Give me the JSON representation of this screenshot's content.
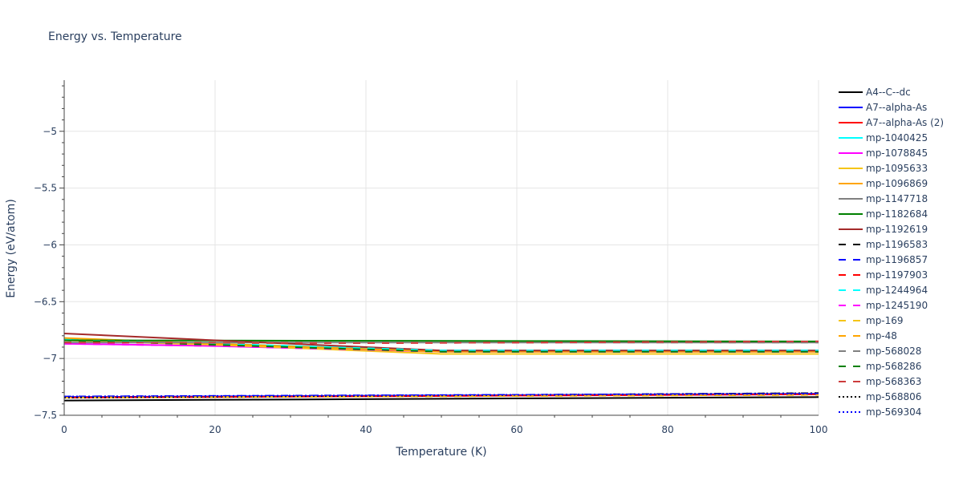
{
  "chart_data": {
    "type": "line",
    "title": "Energy vs. Temperature",
    "xlabel": "Temperature (K)",
    "ylabel": "Energy (eV/atom)",
    "xlim": [
      0,
      100
    ],
    "ylim": [
      -7.5,
      -4.55
    ],
    "x_ticks": [
      0,
      20,
      40,
      60,
      80,
      100
    ],
    "y_ticks": [
      -5,
      -5.5,
      -6,
      -6.5,
      -7,
      -7.5
    ],
    "x_tick_labels": [
      "0",
      "20",
      "40",
      "60",
      "80",
      "100"
    ],
    "y_tick_labels": [
      "−5",
      "−5.5",
      "−6",
      "−6.5",
      "−7",
      "−7.5"
    ],
    "grid": true,
    "legend_position": "right",
    "series": [
      {
        "name": "A4--C--dc",
        "color": "#000000",
        "dash": "solid",
        "x": [
          0,
          100
        ],
        "y": [
          -7.37,
          -7.34
        ]
      },
      {
        "name": "A7--alpha-As",
        "color": "#0000ff",
        "dash": "solid",
        "x": [
          0,
          100
        ],
        "y": [
          -7.34,
          -7.31
        ]
      },
      {
        "name": "A7--alpha-As (2)",
        "color": "#ff0000",
        "dash": "solid",
        "x": [
          0,
          100
        ],
        "y": [
          -7.345,
          -7.315
        ]
      },
      {
        "name": "mp-1040425",
        "color": "#00ffff",
        "dash": "solid",
        "x": [
          0,
          20,
          50,
          100
        ],
        "y": [
          -6.83,
          -6.87,
          -6.93,
          -6.93
        ]
      },
      {
        "name": "mp-1078845",
        "color": "#ff00ff",
        "dash": "solid",
        "x": [
          0,
          20,
          50,
          100
        ],
        "y": [
          -6.87,
          -6.89,
          -6.94,
          -6.94
        ]
      },
      {
        "name": "mp-1095633",
        "color": "#f5c518",
        "dash": "solid",
        "x": [
          0,
          20,
          50,
          100
        ],
        "y": [
          -6.84,
          -6.88,
          -6.96,
          -6.96
        ]
      },
      {
        "name": "mp-1096869",
        "color": "#ffa500",
        "dash": "solid",
        "x": [
          0,
          20,
          50,
          100
        ],
        "y": [
          -6.82,
          -6.87,
          -6.94,
          -6.94
        ]
      },
      {
        "name": "mp-1147718",
        "color": "#808080",
        "dash": "solid",
        "x": [
          0,
          100
        ],
        "y": [
          -6.86,
          -6.86
        ]
      },
      {
        "name": "mp-1182684",
        "color": "#008000",
        "dash": "solid",
        "x": [
          0,
          100
        ],
        "y": [
          -6.84,
          -6.85
        ]
      },
      {
        "name": "mp-1192619",
        "color": "#a52a2a",
        "dash": "solid",
        "x": [
          0,
          20,
          50,
          100
        ],
        "y": [
          -6.78,
          -6.84,
          -6.93,
          -6.93
        ]
      },
      {
        "name": "mp-1196583",
        "color": "#000000",
        "dash": "dash",
        "x": [
          0,
          100
        ],
        "y": [
          -7.345,
          -7.305
        ]
      },
      {
        "name": "mp-1196857",
        "color": "#0000ff",
        "dash": "dash",
        "x": [
          0,
          100
        ],
        "y": [
          -7.335,
          -7.31
        ]
      },
      {
        "name": "mp-1197903",
        "color": "#ff0000",
        "dash": "dash",
        "x": [
          0,
          40,
          100
        ],
        "y": [
          -6.86,
          -6.865,
          -6.85
        ]
      },
      {
        "name": "mp-1244964",
        "color": "#00ffff",
        "dash": "dash",
        "x": [
          0,
          20,
          50,
          100
        ],
        "y": [
          -6.84,
          -6.87,
          -6.93,
          -6.93
        ]
      },
      {
        "name": "mp-1245190",
        "color": "#ff00ff",
        "dash": "dash",
        "x": [
          0,
          20,
          50,
          100
        ],
        "y": [
          -6.87,
          -6.89,
          -6.94,
          -6.94
        ]
      },
      {
        "name": "mp-169",
        "color": "#f5c518",
        "dash": "dash",
        "x": [
          0,
          100
        ],
        "y": [
          -7.345,
          -7.32
        ]
      },
      {
        "name": "mp-48",
        "color": "#ffa500",
        "dash": "dash",
        "x": [
          0,
          100
        ],
        "y": [
          -7.345,
          -7.32
        ]
      },
      {
        "name": "mp-568028",
        "color": "#808080",
        "dash": "dash",
        "x": [
          0,
          100
        ],
        "y": [
          -6.86,
          -6.86
        ]
      },
      {
        "name": "mp-568286",
        "color": "#008000",
        "dash": "dash",
        "x": [
          0,
          20,
          50,
          100
        ],
        "y": [
          -6.84,
          -6.88,
          -6.94,
          -6.94
        ]
      },
      {
        "name": "mp-568363",
        "color": "#cd3c3c",
        "dash": "dash",
        "x": [
          0,
          40,
          100
        ],
        "y": [
          -6.86,
          -6.865,
          -6.85
        ]
      },
      {
        "name": "mp-568806",
        "color": "#000000",
        "dash": "dot",
        "x": [
          0,
          100
        ],
        "y": [
          -7.345,
          -7.305
        ]
      },
      {
        "name": "mp-569304",
        "color": "#0000ff",
        "dash": "dot",
        "x": [
          0,
          100
        ],
        "y": [
          -7.335,
          -7.31
        ]
      }
    ]
  }
}
